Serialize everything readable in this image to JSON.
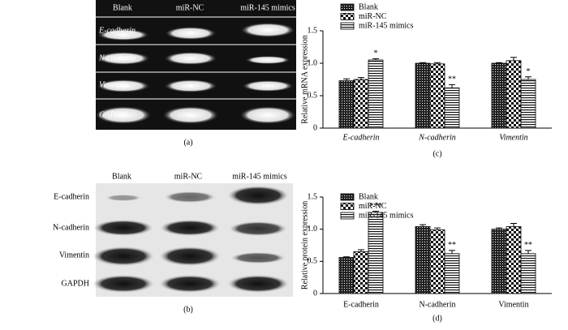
{
  "gel_a": {
    "columns": [
      "Blank",
      "miR-NC",
      "miR-145 mimics"
    ],
    "rows": [
      "E-cadherin",
      "N-cadherin",
      "Vimentin",
      "GAPDH"
    ],
    "caption": "(a)"
  },
  "gel_b": {
    "columns": [
      "Blank",
      "miR-NC",
      "miR-145 mimics"
    ],
    "rows": [
      "E-cadherin",
      "N-cadherin",
      "Vimentin",
      "GAPDH"
    ],
    "caption": "(b)"
  },
  "chart_data": [
    {
      "type": "bar",
      "caption": "(c)",
      "y_label": "Relative mRNA expression",
      "categories": [
        "E-cadherin",
        "N-cadherin",
        "Vimentin"
      ],
      "series": [
        {
          "name": "Blank",
          "pattern": "dense-grid",
          "values": [
            0.73,
            1.0,
            1.0
          ],
          "errors": [
            0.03,
            0.01,
            0.01
          ]
        },
        {
          "name": "miR-NC",
          "pattern": "checker",
          "values": [
            0.75,
            0.99,
            1.04
          ],
          "errors": [
            0.03,
            0.02,
            0.05
          ]
        },
        {
          "name": "miR-145 mimics",
          "pattern": "horizontal-lines",
          "values": [
            1.05,
            0.62,
            0.75
          ],
          "errors": [
            0.02,
            0.05,
            0.04
          ],
          "significance": [
            "*",
            "**",
            "*"
          ]
        }
      ],
      "ylim": [
        0,
        1.5
      ],
      "yticks": [
        0,
        0.5,
        {
          "value": 1,
          "label": "1.0"
        },
        1.5
      ],
      "legend": "top-left"
    },
    {
      "type": "bar",
      "caption": "(d)",
      "y_label": "Relative protein expression",
      "categories": [
        "E-cadherin",
        "N-cadherin",
        "Vimentin"
      ],
      "series": [
        {
          "name": "Blank",
          "pattern": "dense-grid",
          "values": [
            0.56,
            1.04,
            1.0
          ],
          "errors": [
            0.01,
            0.03,
            0.02
          ]
        },
        {
          "name": "miR-NC",
          "pattern": "checker",
          "values": [
            0.65,
            0.99,
            1.04
          ],
          "errors": [
            0.03,
            0.03,
            0.05
          ]
        },
        {
          "name": "miR-145 mimics",
          "pattern": "horizontal-lines",
          "values": [
            1.26,
            0.62,
            0.62
          ],
          "errors": [
            0.02,
            0.05,
            0.05
          ],
          "significance": [
            "***",
            "**",
            "**"
          ]
        }
      ],
      "ylim": [
        0,
        1.5
      ],
      "yticks": [
        0,
        0.5,
        {
          "value": 1,
          "label": "1.0"
        },
        1.5
      ],
      "legend": "top-left"
    }
  ]
}
